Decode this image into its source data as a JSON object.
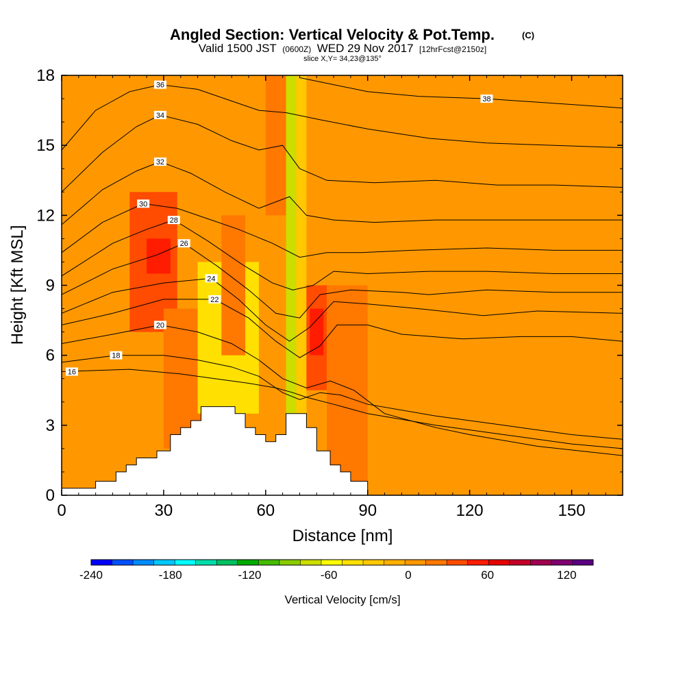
{
  "chart_data": {
    "type": "heatmap",
    "title": "Angled Section: Vertical Velocity & Pot.Temp.",
    "title_unit": "(C)",
    "subtitle_parts": [
      "Valid 1500 JST",
      "(0600Z)",
      "WED 29 Nov 2017",
      "[12hrFcst@2150z]"
    ],
    "slice_text": "slice X,Y= 34,23@135°",
    "xlabel": "Distance [nm]",
    "ylabel": "Height [Kft MSL]",
    "xlim": [
      0,
      165
    ],
    "ylim": [
      0,
      18
    ],
    "x_ticks": [
      0,
      30,
      60,
      90,
      120,
      150
    ],
    "y_ticks": [
      0,
      3,
      6,
      9,
      12,
      15,
      18
    ],
    "colorbar": {
      "label": "Vertical Velocity [cm/s]",
      "range": [
        -240,
        140
      ],
      "tick_values": [
        -240,
        -180,
        -120,
        -60,
        0,
        60,
        120
      ],
      "colors": [
        "#0000ff",
        "#0050ff",
        "#008cff",
        "#00c8ff",
        "#00ffff",
        "#00ddaa",
        "#00c060",
        "#00aa00",
        "#44bb00",
        "#88cc00",
        "#ccdd00",
        "#ffff00",
        "#ffe000",
        "#ffc800",
        "#ffb000",
        "#ff9800",
        "#ff7800",
        "#ff4c00",
        "#ff1c00",
        "#e60000",
        "#c40028",
        "#a00050",
        "#800070",
        "#5a0080"
      ]
    },
    "velocity_cells": [
      {
        "x": [
          0,
          165
        ],
        "z": [
          0,
          18
        ],
        "w": 0
      },
      {
        "x": [
          0,
          30
        ],
        "z": [
          0,
          18
        ],
        "w": 10
      },
      {
        "x": [
          20,
          34
        ],
        "z": [
          7,
          13
        ],
        "w": 30
      },
      {
        "x": [
          25,
          32
        ],
        "z": [
          9.5,
          11
        ],
        "w": 50
      },
      {
        "x": [
          30,
          43
        ],
        "z": [
          2,
          8
        ],
        "w": 20
      },
      {
        "x": [
          40,
          58
        ],
        "z": [
          3.5,
          10
        ],
        "w": -40
      },
      {
        "x": [
          47,
          54
        ],
        "z": [
          6,
          12
        ],
        "w": 20
      },
      {
        "x": [
          60,
          66
        ],
        "z": [
          12,
          18
        ],
        "w": 20
      },
      {
        "x": [
          66,
          69
        ],
        "z": [
          3,
          18
        ],
        "w": -80
      },
      {
        "x": [
          69,
          72
        ],
        "z": [
          3,
          18
        ],
        "w": -30
      },
      {
        "x": [
          72,
          78
        ],
        "z": [
          4.5,
          9
        ],
        "w": 40
      },
      {
        "x": [
          73,
          77
        ],
        "z": [
          6,
          8
        ],
        "w": 60
      },
      {
        "x": [
          78,
          90
        ],
        "z": [
          0,
          9
        ],
        "w": 15
      },
      {
        "x": [
          90,
          165
        ],
        "z": [
          0,
          18
        ],
        "w": 0
      },
      {
        "x": [
          130,
          165
        ],
        "z": [
          0,
          9
        ],
        "w": 10
      }
    ],
    "terrain": [
      [
        0,
        0.3
      ],
      [
        10,
        0.3
      ],
      [
        10,
        0.6
      ],
      [
        16,
        0.6
      ],
      [
        16,
        1.0
      ],
      [
        19,
        1.0
      ],
      [
        19,
        1.3
      ],
      [
        22,
        1.3
      ],
      [
        22,
        1.6
      ],
      [
        28,
        1.6
      ],
      [
        28,
        1.9
      ],
      [
        32,
        1.9
      ],
      [
        32,
        2.6
      ],
      [
        35,
        2.6
      ],
      [
        35,
        2.9
      ],
      [
        38,
        2.9
      ],
      [
        38,
        3.2
      ],
      [
        41,
        3.2
      ],
      [
        41,
        3.8
      ],
      [
        51,
        3.8
      ],
      [
        51,
        3.5
      ],
      [
        54,
        3.5
      ],
      [
        54,
        2.9
      ],
      [
        57,
        2.9
      ],
      [
        57,
        2.6
      ],
      [
        60,
        2.6
      ],
      [
        60,
        2.3
      ],
      [
        63,
        2.3
      ],
      [
        63,
        2.6
      ],
      [
        66,
        2.6
      ],
      [
        66,
        3.5
      ],
      [
        72,
        3.5
      ],
      [
        72,
        2.9
      ],
      [
        75,
        2.9
      ],
      [
        75,
        1.9
      ],
      [
        79,
        1.9
      ],
      [
        79,
        1.3
      ],
      [
        82,
        1.3
      ],
      [
        82,
        1.0
      ],
      [
        85,
        1.0
      ],
      [
        85,
        0.6
      ],
      [
        90,
        0.6
      ],
      [
        90,
        0
      ],
      [
        0,
        0
      ]
    ],
    "isentropes": [
      {
        "value": 16,
        "label_at": [
          3,
          5.3
        ],
        "points": [
          [
            0,
            5.3
          ],
          [
            20,
            5.4
          ],
          [
            35,
            5.2
          ],
          [
            45,
            5.0
          ],
          [
            55,
            4.8
          ],
          [
            63,
            4.6
          ],
          [
            68,
            4.4
          ],
          [
            72,
            4.2
          ],
          [
            80,
            3.9
          ],
          [
            90,
            3.5
          ],
          [
            110,
            3.0
          ],
          [
            130,
            2.6
          ],
          [
            150,
            2.2
          ],
          [
            165,
            2.0
          ]
        ]
      },
      {
        "value": 18,
        "label_at": [
          16,
          6.0
        ],
        "points": [
          [
            0,
            5.7
          ],
          [
            16,
            6.0
          ],
          [
            30,
            6.0
          ],
          [
            40,
            5.8
          ],
          [
            50,
            5.5
          ],
          [
            58,
            5.1
          ],
          [
            65,
            4.4
          ],
          [
            70,
            4.1
          ],
          [
            76,
            4.4
          ],
          [
            82,
            4.3
          ],
          [
            90,
            3.9
          ],
          [
            110,
            3.4
          ],
          [
            130,
            3.0
          ],
          [
            150,
            2.6
          ],
          [
            165,
            2.4
          ]
        ]
      },
      {
        "value": 20,
        "label_at": [
          29,
          7.3
        ],
        "points": [
          [
            0,
            6.5
          ],
          [
            15,
            6.9
          ],
          [
            29,
            7.3
          ],
          [
            40,
            7.0
          ],
          [
            50,
            6.5
          ],
          [
            58,
            5.8
          ],
          [
            65,
            5.0
          ],
          [
            72,
            4.6
          ],
          [
            79,
            4.9
          ],
          [
            86,
            4.5
          ],
          [
            95,
            3.5
          ],
          [
            110,
            2.9
          ],
          [
            120,
            2.6
          ],
          [
            140,
            2.1
          ],
          [
            165,
            1.7
          ]
        ]
      },
      {
        "value": 22,
        "label_at": [
          45,
          8.4
        ],
        "points": [
          [
            0,
            7.3
          ],
          [
            15,
            7.8
          ],
          [
            30,
            8.4
          ],
          [
            45,
            8.4
          ],
          [
            55,
            7.6
          ],
          [
            63,
            6.6
          ],
          [
            70,
            5.9
          ],
          [
            76,
            6.4
          ],
          [
            81,
            7.3
          ],
          [
            90,
            7.3
          ],
          [
            100,
            6.9
          ],
          [
            118,
            6.7
          ],
          [
            135,
            6.8
          ],
          [
            150,
            6.8
          ],
          [
            165,
            6.6
          ]
        ]
      },
      {
        "value": 24,
        "label_at": [
          44,
          9.3
        ],
        "points": [
          [
            0,
            7.8
          ],
          [
            15,
            8.7
          ],
          [
            30,
            9.1
          ],
          [
            44,
            9.3
          ],
          [
            52,
            8.4
          ],
          [
            60,
            7.3
          ],
          [
            67,
            6.6
          ],
          [
            73,
            7.2
          ],
          [
            80,
            8.3
          ],
          [
            90,
            8.2
          ],
          [
            105,
            8.0
          ],
          [
            124,
            7.7
          ],
          [
            140,
            7.9
          ],
          [
            165,
            7.8
          ]
        ]
      },
      {
        "value": 26,
        "label_at": [
          36,
          10.8
        ],
        "points": [
          [
            0,
            8.6
          ],
          [
            15,
            9.7
          ],
          [
            28,
            10.3
          ],
          [
            36,
            10.8
          ],
          [
            46,
            9.8
          ],
          [
            55,
            8.8
          ],
          [
            63,
            7.8
          ],
          [
            70,
            7.6
          ],
          [
            76,
            8.6
          ],
          [
            85,
            8.8
          ],
          [
            100,
            8.7
          ],
          [
            108,
            8.6
          ],
          [
            125,
            8.8
          ],
          [
            145,
            8.7
          ],
          [
            165,
            8.7
          ]
        ]
      },
      {
        "value": 28,
        "label_at": [
          33,
          11.8
        ],
        "points": [
          [
            0,
            9.4
          ],
          [
            15,
            10.8
          ],
          [
            25,
            11.4
          ],
          [
            33,
            11.8
          ],
          [
            43,
            10.9
          ],
          [
            53,
            9.9
          ],
          [
            62,
            9.1
          ],
          [
            68,
            8.8
          ],
          [
            74,
            9.0
          ],
          [
            80,
            9.6
          ],
          [
            90,
            9.5
          ],
          [
            108,
            9.6
          ],
          [
            125,
            9.6
          ],
          [
            145,
            9.5
          ],
          [
            165,
            9.5
          ]
        ]
      },
      {
        "value": 30,
        "label_at": [
          24,
          12.5
        ],
        "points": [
          [
            0,
            10.4
          ],
          [
            12,
            11.7
          ],
          [
            24,
            12.5
          ],
          [
            34,
            12.3
          ],
          [
            44,
            11.8
          ],
          [
            52,
            11.4
          ],
          [
            62,
            10.8
          ],
          [
            70,
            10.2
          ],
          [
            78,
            10.4
          ],
          [
            88,
            10.4
          ],
          [
            103,
            10.5
          ],
          [
            125,
            10.6
          ],
          [
            145,
            10.5
          ],
          [
            165,
            10.5
          ]
        ]
      },
      {
        "value": 32,
        "label_at": [
          29,
          14.3
        ],
        "points": [
          [
            0,
            11.6
          ],
          [
            12,
            13.1
          ],
          [
            22,
            13.9
          ],
          [
            29,
            14.3
          ],
          [
            38,
            13.8
          ],
          [
            48,
            13.0
          ],
          [
            58,
            12.3
          ],
          [
            67,
            12.8
          ],
          [
            72,
            12.0
          ],
          [
            80,
            11.8
          ],
          [
            92,
            11.7
          ],
          [
            110,
            11.8
          ],
          [
            124,
            11.8
          ],
          [
            145,
            11.8
          ],
          [
            165,
            11.8
          ]
        ]
      },
      {
        "value": 34,
        "label_at": [
          29,
          16.3
        ],
        "points": [
          [
            0,
            13.0
          ],
          [
            12,
            14.7
          ],
          [
            22,
            15.8
          ],
          [
            29,
            16.3
          ],
          [
            40,
            15.9
          ],
          [
            50,
            15.2
          ],
          [
            58,
            14.8
          ],
          [
            65,
            15.0
          ],
          [
            70,
            14.0
          ],
          [
            78,
            13.5
          ],
          [
            92,
            13.4
          ],
          [
            110,
            13.5
          ],
          [
            128,
            13.3
          ],
          [
            145,
            13.3
          ],
          [
            165,
            13.2
          ]
        ]
      },
      {
        "value": 36,
        "label_at": [
          29,
          17.6
        ],
        "points": [
          [
            0,
            14.8
          ],
          [
            10,
            16.5
          ],
          [
            20,
            17.3
          ],
          [
            29,
            17.6
          ],
          [
            40,
            17.4
          ],
          [
            50,
            16.9
          ],
          [
            58,
            16.5
          ],
          [
            66,
            16.4
          ],
          [
            76,
            16.1
          ],
          [
            90,
            15.7
          ],
          [
            108,
            15.3
          ],
          [
            125,
            15.1
          ],
          [
            145,
            15.0
          ],
          [
            165,
            14.9
          ]
        ]
      },
      {
        "value": 38,
        "label_at": [
          125,
          17.0
        ],
        "points": [
          [
            70,
            17.9
          ],
          [
            80,
            17.6
          ],
          [
            90,
            17.3
          ],
          [
            105,
            17.1
          ],
          [
            125,
            17.0
          ],
          [
            145,
            16.8
          ],
          [
            165,
            16.6
          ]
        ]
      }
    ]
  }
}
